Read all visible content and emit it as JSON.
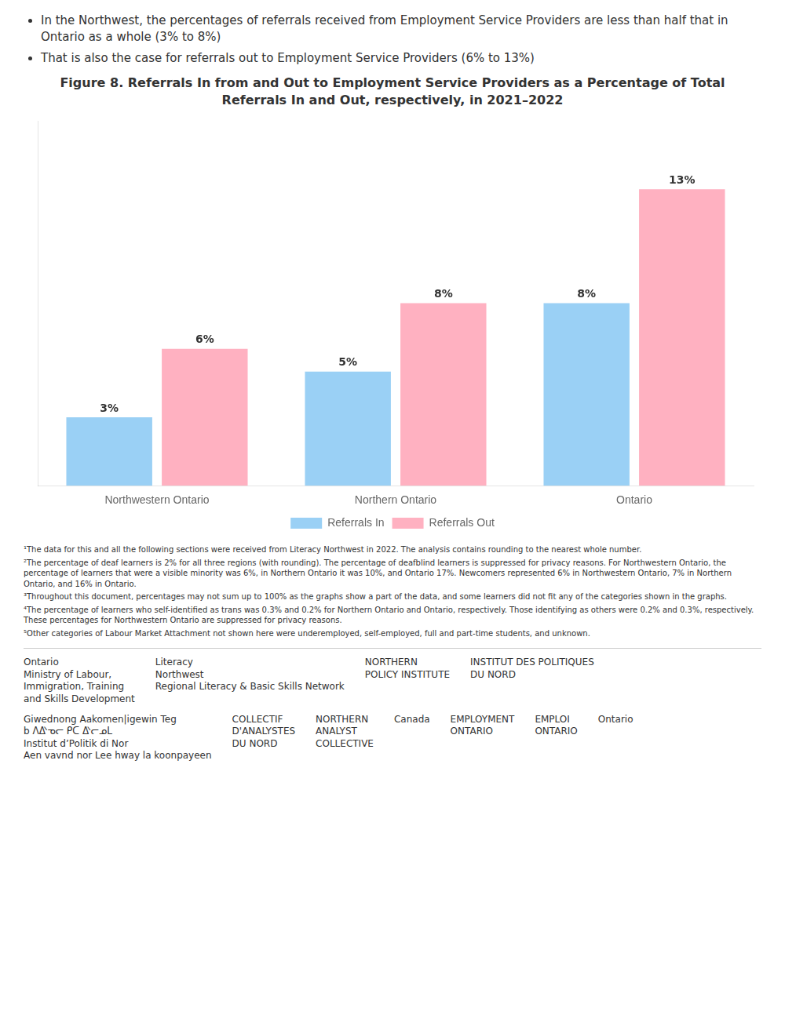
{
  "chart_data": {
    "type": "bar",
    "title": "Figure 8. Referrals In from and Out to Employment Service Providers as a Percentage of Total Referrals In and Out, respectively, in 2021–2022",
    "categories": [
      "Northwestern Ontario",
      "Northern Ontario",
      "Ontario"
    ],
    "series": [
      {
        "name": "Referrals In",
        "values": [
          3,
          5,
          8
        ],
        "value_labels": [
          "3%",
          "5%",
          "8%"
        ]
      },
      {
        "name": "Referrals Out",
        "values": [
          6,
          8,
          13
        ],
        "value_labels": [
          "6%",
          "8%",
          "13%"
        ]
      }
    ],
    "ylim": [
      0,
      16
    ],
    "yticks": [],
    "grid": false,
    "legend": "bottom",
    "data_labels": true,
    "tick_labels": "x",
    "annotations": [
      "In the Northwest, the percentages of referrals received from Employment Service Providers are less than half that in Ontario as a whole (3% to 8%)",
      "That is also the case for referrals out to Employment Service Providers (6% to 13%)",
      "¹The data for this and all the following sections were received from Literacy Northwest in 2022. The analysis contains rounding to the nearest whole number.",
      "²The percentage of deaf learners is 2% for all three regions (with rounding). The percentage of deafblind learners is suppressed for privacy reasons. For Northwestern Ontario, the percentage of learners that were a visible minority was 6%, in Northern Ontario it was 10%, and Ontario 17%. Newcomers represented 6% in Northwestern Ontario, 7% in Northern Ontario, and 16% in Ontario.",
      "³Throughout this document, percentages may not sum up to 100% as the graphs show a part of the data, and some learners did not fit any of the categories shown in the graphs.",
      "⁴The percentage of learners who self-identified as trans was 0.3% and 0.2% for Northern Ontario and Ontario, respectively. Those identifying as others were 0.2% and 0.3%, respectively. These percentages for Northwestern Ontario are suppressed for privacy reasons.",
      "⁵Other categories of Labour Market Attachment not shown here were underemployed, self-employed, full and part-time students, and unknown.",
      "Ontario\nMinistry of Labour,\nImmigration, Training\nand Skills Development",
      "Literacy\nNorthwest\nRegional Literacy & Basic Skills Network",
      "NORTHERN\nPOLICY INSTITUTE",
      "INSTITUT DES POLITIQUES\nDU NORD",
      "Giwednong Aakomen|igewin Teg\nb ᐱᐬᓀᓕ ᑭᑕ ᐬᓕᓄᒪ\nInstitut d’Politik di Nor\nAen vavnd nor Lee hway la koonpayeen",
      "COLLECTIF\nD'ANALYSTES\nDU NORD",
      "NORTHERN\nANALYST\nCOLLECTIVE",
      "Canada",
      "EMPLOYMENT\nONTARIO",
      "EMPLOI\nONTARIO",
      "Ontario"
    ]
  }
}
